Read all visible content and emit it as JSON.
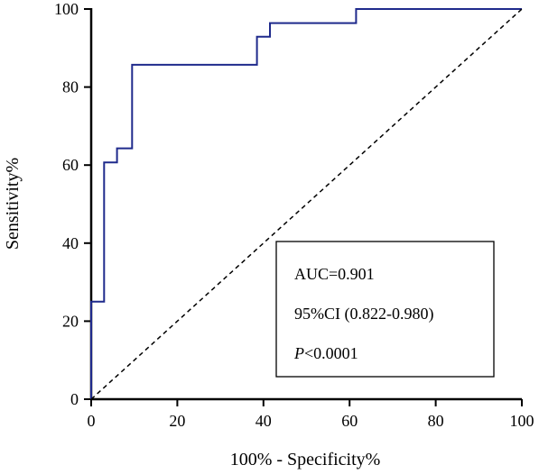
{
  "chart_data": {
    "type": "line",
    "xlabel": "100% - Specificity%",
    "ylabel": "Sensitivity%",
    "xlim": [
      0,
      100
    ],
    "ylim": [
      0,
      100
    ],
    "x_ticks": [
      "0",
      "20",
      "40",
      "60",
      "80",
      "100"
    ],
    "y_ticks": [
      "0",
      "20",
      "40",
      "60",
      "80",
      "100"
    ],
    "grid": false,
    "series": [
      {
        "color": "#1f2a8c",
        "style": "solid",
        "x": [
          0,
          0,
          3,
          3,
          6,
          6,
          9.5,
          9.5,
          38.5,
          38.5,
          41.5,
          41.5,
          61.5,
          61.5,
          100
        ],
        "y": [
          0,
          25,
          25,
          60.7,
          60.7,
          64.3,
          64.3,
          85.7,
          85.7,
          92.9,
          92.9,
          96.4,
          96.4,
          100,
          100
        ]
      },
      {
        "color": "#000000",
        "style": "dashed",
        "x": [
          0,
          100
        ],
        "y": [
          0,
          100
        ]
      }
    ],
    "annotation": {
      "auc": "AUC=0.901",
      "ci": "95%CI (0.822-0.980)",
      "p_label": "P",
      "p_value": "<0.0001"
    }
  }
}
